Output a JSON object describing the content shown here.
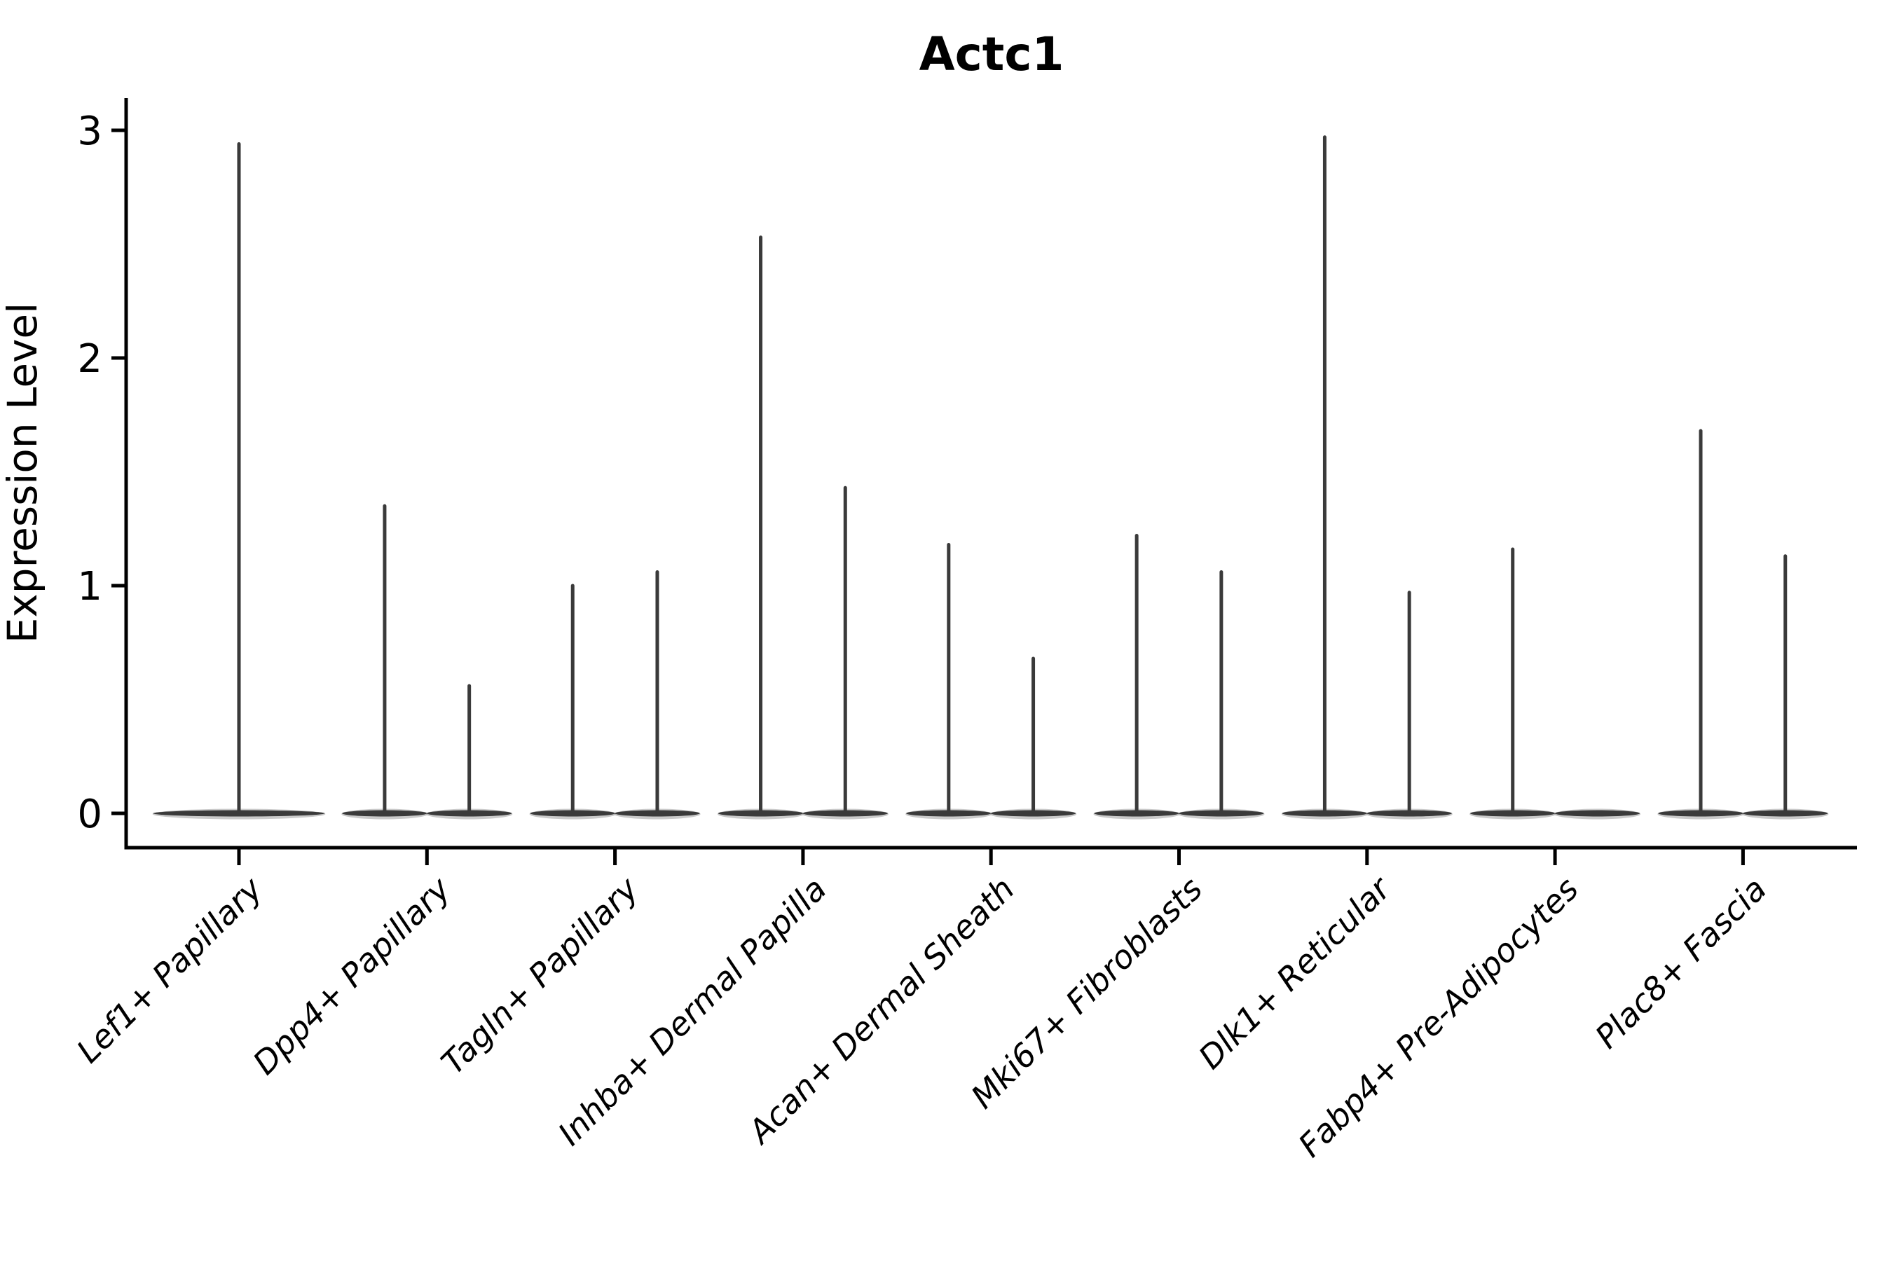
{
  "chart_data": {
    "type": "violin",
    "title": "Actc1",
    "ylabel": "Expression Level",
    "xlabel": "",
    "yticks": [
      0,
      1,
      2,
      3
    ],
    "ylim": [
      -0.15,
      3.15
    ],
    "grid": false,
    "legend": "none",
    "x_tick_rotation_deg": 45,
    "x_tick_font_style": "italic",
    "categories": [
      "Lef1+ Papillary",
      "Dpp4+ Papillary",
      "Tagln+ Papillary",
      "Inhba+ Dermal Papilla",
      "Acan+ Dermal Sheath",
      "Mki67+ Fibroblasts",
      "Dlk1+ Reticular",
      "Fabp4+ Pre-Adipocytes",
      "Plac8+ Fascia"
    ],
    "series": [
      {
        "category": "Lef1+ Papillary",
        "violins": [
          {
            "offset": 0.0,
            "halfwidth": 0.46,
            "max": 2.94
          }
        ]
      },
      {
        "category": "Dpp4+ Papillary",
        "violins": [
          {
            "offset": -0.225,
            "halfwidth": 0.23,
            "max": 1.35
          },
          {
            "offset": 0.225,
            "halfwidth": 0.23,
            "max": 0.56
          }
        ]
      },
      {
        "category": "Tagln+ Papillary",
        "violins": [
          {
            "offset": -0.225,
            "halfwidth": 0.23,
            "max": 1.0
          },
          {
            "offset": 0.225,
            "halfwidth": 0.23,
            "max": 1.06
          }
        ]
      },
      {
        "category": "Inhba+ Dermal Papilla",
        "violins": [
          {
            "offset": -0.225,
            "halfwidth": 0.23,
            "max": 2.53
          },
          {
            "offset": 0.225,
            "halfwidth": 0.23,
            "max": 1.43
          }
        ]
      },
      {
        "category": "Acan+ Dermal Sheath",
        "violins": [
          {
            "offset": -0.225,
            "halfwidth": 0.23,
            "max": 1.18
          },
          {
            "offset": 0.225,
            "halfwidth": 0.23,
            "max": 0.68
          }
        ]
      },
      {
        "category": "Mki67+ Fibroblasts",
        "violins": [
          {
            "offset": -0.225,
            "halfwidth": 0.23,
            "max": 1.22
          },
          {
            "offset": 0.225,
            "halfwidth": 0.23,
            "max": 1.06
          }
        ]
      },
      {
        "category": "Dlk1+ Reticular",
        "violins": [
          {
            "offset": -0.225,
            "halfwidth": 0.23,
            "max": 2.97
          },
          {
            "offset": 0.225,
            "halfwidth": 0.23,
            "max": 0.97
          }
        ]
      },
      {
        "category": "Fabp4+ Pre-Adipocytes",
        "violins": [
          {
            "offset": -0.225,
            "halfwidth": 0.23,
            "max": 1.16
          },
          {
            "offset": 0.225,
            "halfwidth": 0.23,
            "max": 0.0
          }
        ]
      },
      {
        "category": "Plac8+ Fascia",
        "violins": [
          {
            "offset": -0.225,
            "halfwidth": 0.23,
            "max": 1.68
          },
          {
            "offset": 0.225,
            "halfwidth": 0.23,
            "max": 1.13
          }
        ]
      }
    ],
    "colors": {
      "violin": "#3a3a3a",
      "violin_halo": "#8a8a8a",
      "axis": "#000000",
      "text": "#000000",
      "background": "#ffffff"
    }
  }
}
